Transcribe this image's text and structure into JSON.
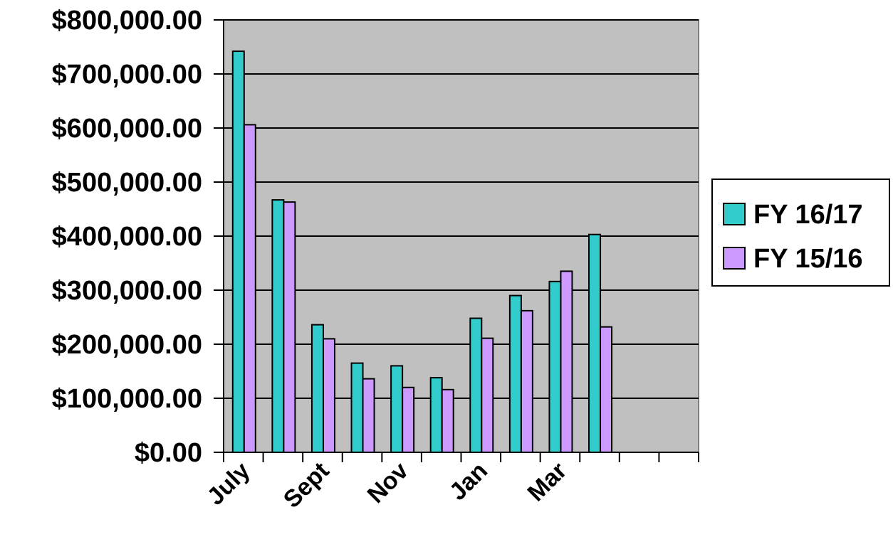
{
  "chart_data": {
    "type": "bar",
    "title": "",
    "xlabel": "",
    "ylabel": "",
    "ylim": [
      0,
      800000
    ],
    "grid": true,
    "legend_position": "right",
    "plot_background": "#c0c0c0",
    "x_tick_labels": [
      "July",
      "Sept",
      "Nov",
      "Jan",
      "Mar"
    ],
    "y_tick_labels": [
      "$0.00",
      "$100,000.00",
      "$200,000.00",
      "$300,000.00",
      "$400,000.00",
      "$500,000.00",
      "$600,000.00",
      "$700,000.00",
      "$800,000.00"
    ],
    "y_ticks": [
      0,
      100000,
      200000,
      300000,
      400000,
      500000,
      600000,
      700000,
      800000
    ],
    "num_category_slots": 12,
    "series": [
      {
        "name": "FY 16/17",
        "color": "#33cccc",
        "values": [
          742000,
          467000,
          236000,
          165000,
          160000,
          138000,
          248000,
          290000,
          316000,
          403000,
          null,
          null
        ]
      },
      {
        "name": "FY 15/16",
        "color": "#cc99ff",
        "values": [
          606000,
          463000,
          210000,
          136000,
          120000,
          116000,
          211000,
          262000,
          335000,
          232000,
          null,
          null
        ]
      }
    ]
  }
}
